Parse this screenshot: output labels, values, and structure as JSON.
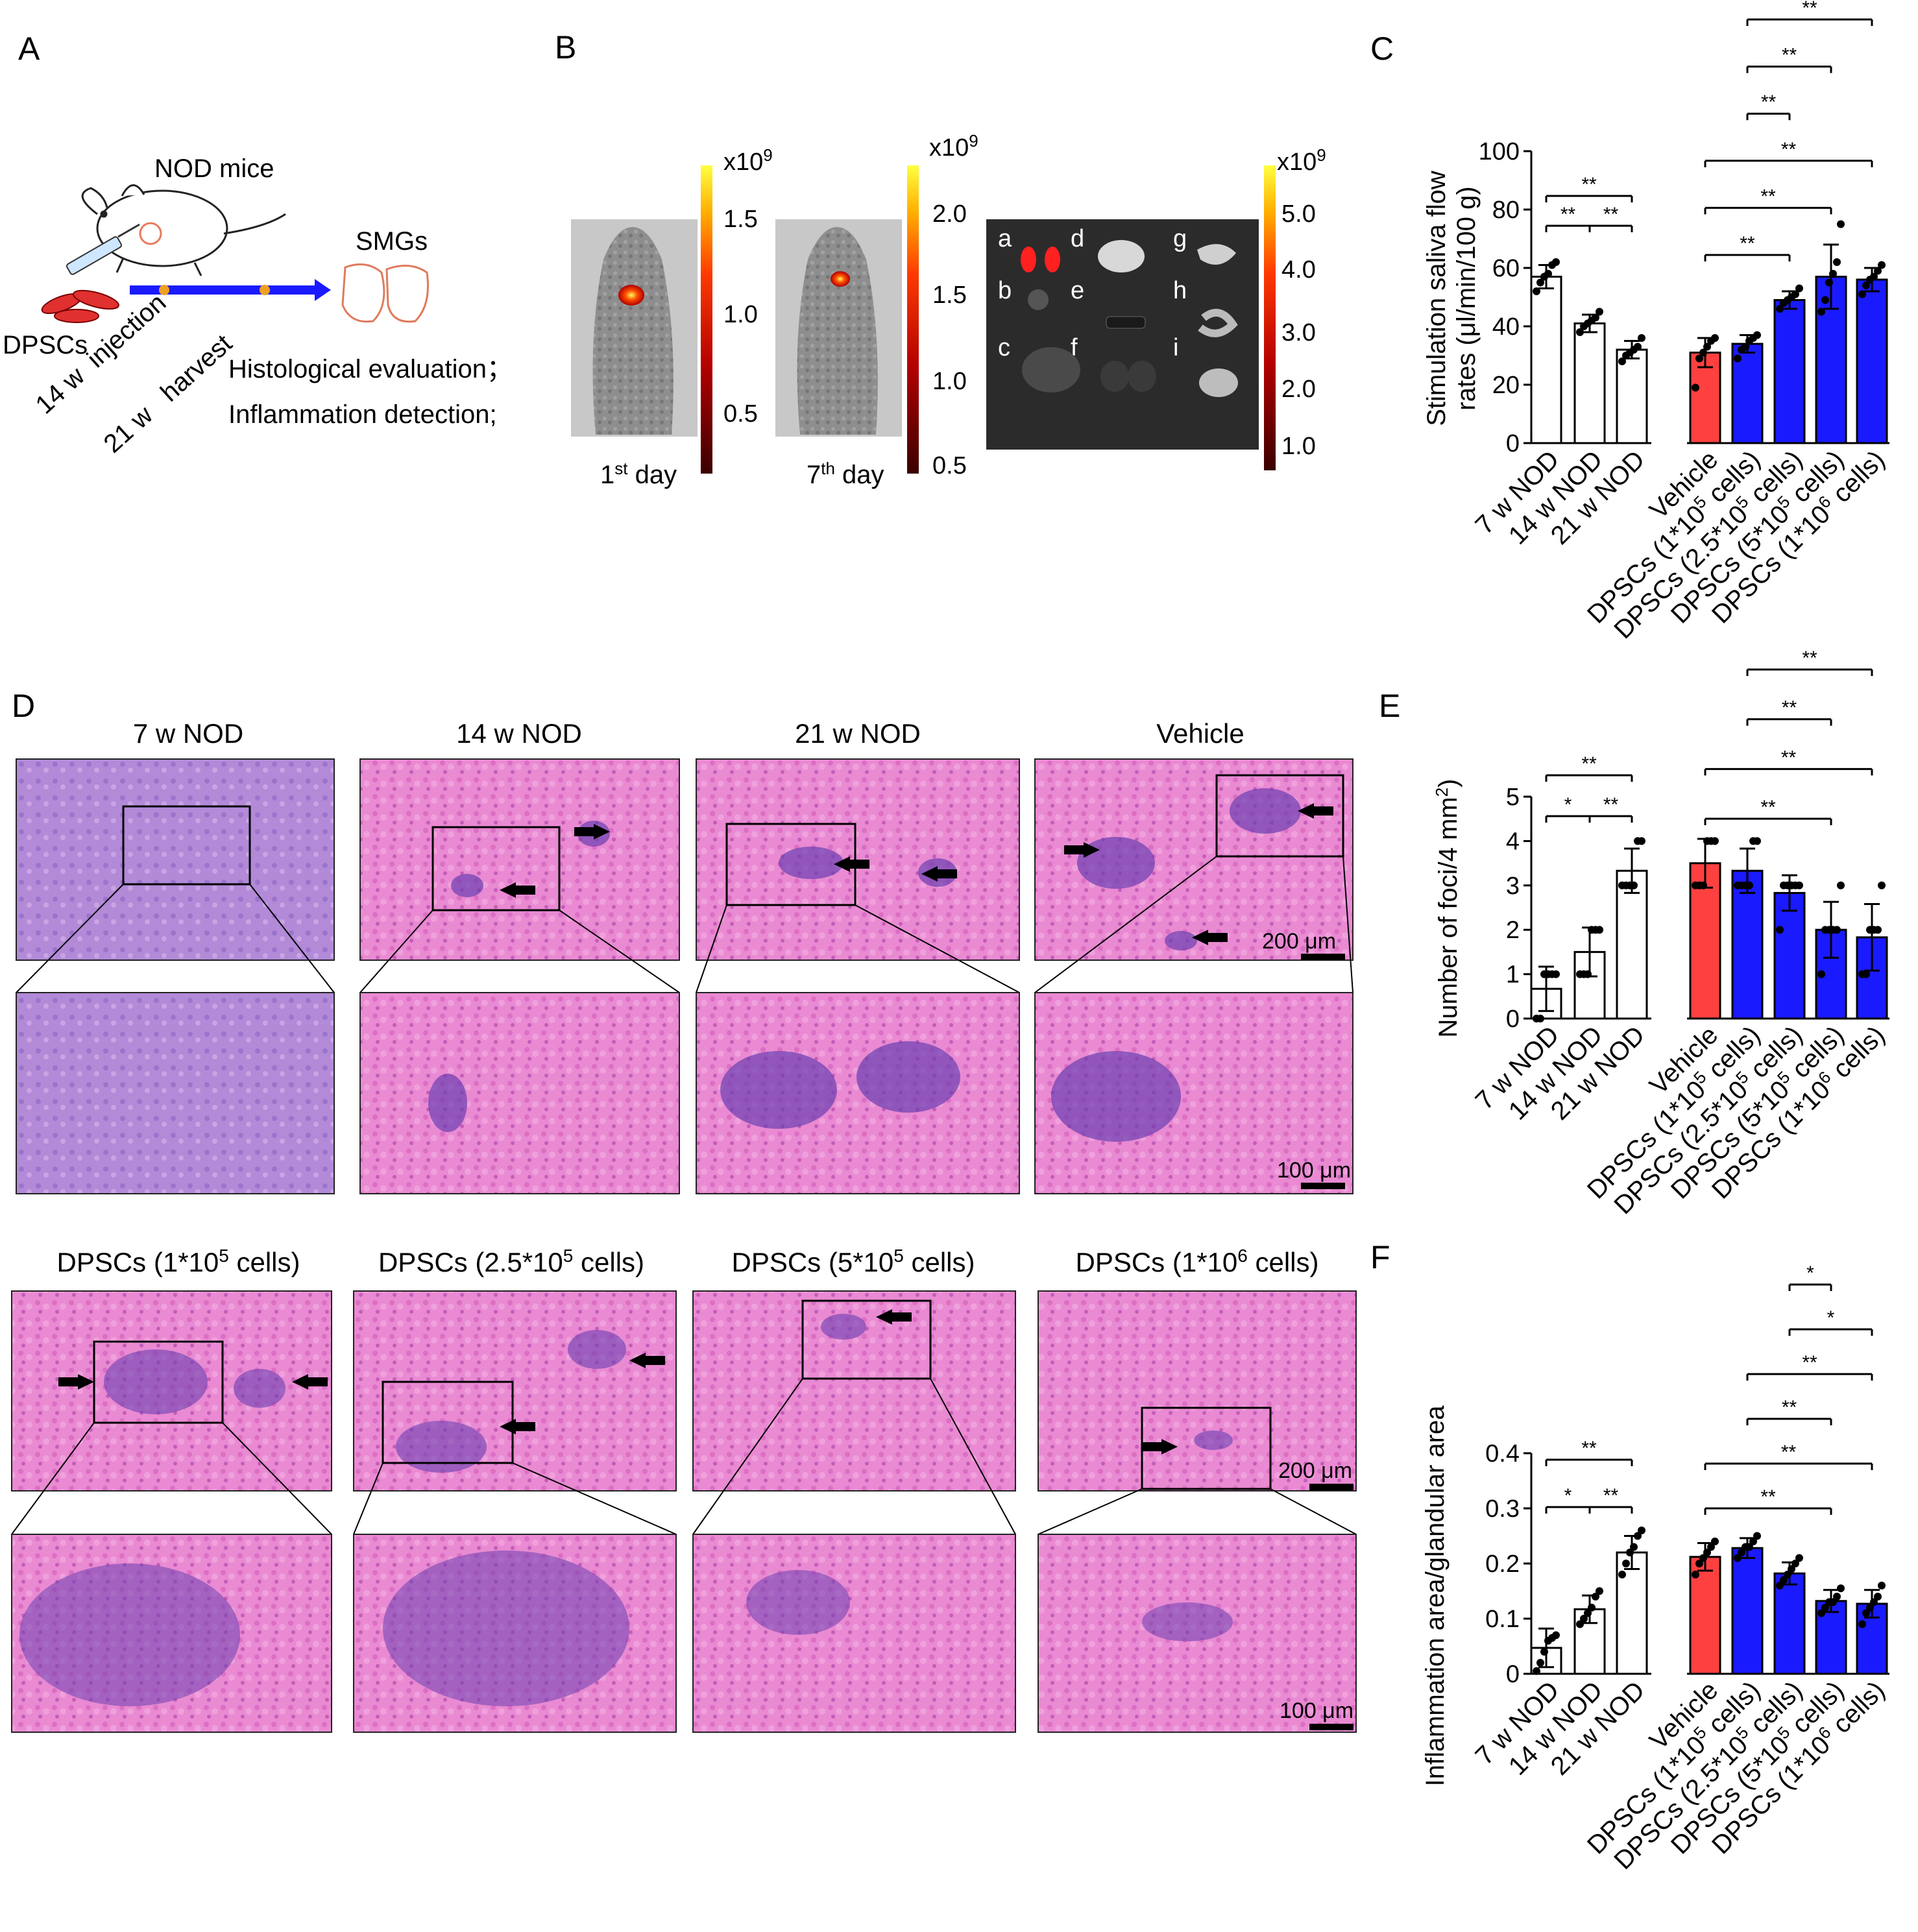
{
  "panels": {
    "A": {
      "letter": "A",
      "mouse_label": "NOD mice",
      "cell_label": "DPSCs",
      "organ_label": "SMGs",
      "timeline": [
        "14 w  injection",
        "21 w   harvest"
      ],
      "outcomes": [
        "Histological evaluation；",
        "Inflammation detection;"
      ]
    },
    "B": {
      "letter": "B",
      "images": [
        {
          "caption": "1st day",
          "caption_base": "1",
          "caption_sup": "st",
          "caption_rest": " day",
          "scale_exp": "x10",
          "scale_exp_sup": "9",
          "scale_ticks": [
            "1.5",
            "1.0",
            "0.5"
          ]
        },
        {
          "caption": "7th day",
          "caption_base": "7",
          "caption_sup": "th",
          "caption_rest": " day",
          "scale_exp": "x10",
          "scale_exp_sup": "9",
          "scale_ticks": [
            "2.0",
            "1.5",
            "1.0",
            "0.5"
          ]
        },
        {
          "caption": "",
          "scale_exp": "x10",
          "scale_exp_sup": "9",
          "scale_ticks": [
            "5.0",
            "4.0",
            "3.0",
            "2.0",
            "1.0"
          ],
          "organ_letters": [
            "a",
            "b",
            "c",
            "d",
            "e",
            "f",
            "g",
            "h",
            "i"
          ]
        }
      ]
    },
    "C": {
      "letter": "C"
    },
    "D": {
      "letter": "D",
      "row1_titles": [
        "7 w NOD",
        "14 w NOD",
        "21 w NOD",
        "Vehicle"
      ],
      "row2_titles": [
        "DPSCs (1*10",
        "DPSCs (2.5*10",
        "DPSCs (5*10",
        "DPSCs (1*10"
      ],
      "row2_sup": [
        "5",
        "5",
        "5",
        "6"
      ],
      "row2_suffix": " cells)",
      "scale_top": "200 μm",
      "scale_bottom": "100 μm"
    },
    "E": {
      "letter": "E"
    },
    "F": {
      "letter": "F"
    }
  },
  "colors": {
    "vehicle": "#ff4040",
    "dpsc": "#1a1aff",
    "control": "#ffffff",
    "he_pink": "#e56bc5",
    "he_purple": "#7a5cc4",
    "timeline": "#1a1aff"
  },
  "chart_data": [
    {
      "id": "C",
      "type": "bar",
      "ylabel": "Stimulation saliva flow rates (μl/min/100 g)",
      "ylabel_lines": [
        "Stimulation saliva flow",
        "rates (μl/min/100 g)"
      ],
      "ylim": [
        0,
        100
      ],
      "yticks": [
        "0",
        "20",
        "40",
        "60",
        "80",
        "100"
      ],
      "categories": [
        "7 w NOD",
        "14 w NOD",
        "21 w NOD",
        "Vehicle",
        "DPSCs (1*10^5 cells)",
        "DPSCs (2.5*10^5 cells)",
        "DPSCs (5*10^5 cells)",
        "DPSCs (1*10^6 cells)"
      ],
      "cat_base": [
        "7 w NOD",
        "14 w NOD",
        "21 w NOD",
        "Vehicle",
        "DPSCs (1*10",
        "DPSCs (2.5*10",
        "DPSCs (5*10",
        "DPSCs (1*10"
      ],
      "cat_sup": [
        "",
        "",
        "",
        "",
        "5",
        "5",
        "5",
        "6"
      ],
      "values": [
        57,
        41,
        32,
        31,
        34,
        49,
        57,
        56
      ],
      "errors": [
        4,
        3,
        3,
        5,
        3,
        3,
        11,
        4
      ],
      "color_groups": [
        "control",
        "control",
        "control",
        "vehicle",
        "dpsc",
        "dpsc",
        "dpsc",
        "dpsc"
      ],
      "points": [
        [
          52,
          55,
          57,
          58,
          61,
          62
        ],
        [
          38,
          40,
          41,
          42,
          43,
          45
        ],
        [
          28,
          30,
          31,
          32,
          33,
          36
        ],
        [
          19,
          29,
          31,
          33,
          35,
          36
        ],
        [
          29,
          32,
          33,
          35,
          36,
          37
        ],
        [
          46,
          48,
          49,
          50,
          51,
          53
        ],
        [
          45,
          49,
          55,
          58,
          62,
          75
        ],
        [
          51,
          54,
          56,
          57,
          59,
          61
        ]
      ],
      "significance": [
        {
          "from": 0,
          "to": 1,
          "label": "**"
        },
        {
          "from": 1,
          "to": 2,
          "label": "**"
        },
        {
          "from": 0,
          "to": 2,
          "label": "**"
        },
        {
          "from": 3,
          "to": 5,
          "label": "**"
        },
        {
          "from": 3,
          "to": 6,
          "label": "**"
        },
        {
          "from": 3,
          "to": 7,
          "label": "**"
        },
        {
          "from": 4,
          "to": 5,
          "label": "**"
        },
        {
          "from": 4,
          "to": 6,
          "label": "**"
        },
        {
          "from": 4,
          "to": 7,
          "label": "**"
        }
      ]
    },
    {
      "id": "E",
      "type": "bar",
      "ylabel": "Number of foci/4 mm2",
      "ylabel_base": "Number of foci/4 mm",
      "ylabel_sup": "2",
      "ylabel_close": ")",
      "ylim": [
        0,
        5
      ],
      "yticks": [
        "0",
        "1",
        "2",
        "3",
        "4",
        "5"
      ],
      "categories": [
        "7 w NOD",
        "14 w NOD",
        "21 w NOD",
        "Vehicle",
        "DPSCs (1*10^5 cells)",
        "DPSCs (2.5*10^5 cells)",
        "DPSCs (5*10^5 cells)",
        "DPSCs (1*10^6 cells)"
      ],
      "cat_base": [
        "7 w NOD",
        "14 w NOD",
        "21 w NOD",
        "Vehicle",
        "DPSCs (1*10",
        "DPSCs (2.5*10",
        "DPSCs (5*10",
        "DPSCs (1*10"
      ],
      "cat_sup": [
        "",
        "",
        "",
        "",
        "5",
        "5",
        "5",
        "6"
      ],
      "values": [
        0.67,
        1.5,
        3.33,
        3.5,
        3.33,
        2.83,
        2.0,
        1.83
      ],
      "errors": [
        0.5,
        0.55,
        0.5,
        0.55,
        0.5,
        0.4,
        0.63,
        0.75
      ],
      "color_groups": [
        "control",
        "control",
        "control",
        "vehicle",
        "dpsc",
        "dpsc",
        "dpsc",
        "dpsc"
      ],
      "points": [
        [
          0,
          0,
          1,
          1,
          1,
          1
        ],
        [
          1,
          1,
          1,
          2,
          2,
          2
        ],
        [
          3,
          3,
          3,
          3,
          4,
          4
        ],
        [
          3,
          3,
          3,
          4,
          4,
          4
        ],
        [
          3,
          3,
          3,
          3,
          4,
          4
        ],
        [
          2,
          3,
          3,
          3,
          3,
          3
        ],
        [
          1,
          2,
          2,
          2,
          2,
          3
        ],
        [
          1,
          1,
          2,
          2,
          2,
          3
        ]
      ],
      "significance": [
        {
          "from": 0,
          "to": 1,
          "label": "*"
        },
        {
          "from": 1,
          "to": 2,
          "label": "**"
        },
        {
          "from": 0,
          "to": 2,
          "label": "**"
        },
        {
          "from": 3,
          "to": 6,
          "label": "**"
        },
        {
          "from": 3,
          "to": 7,
          "label": "**"
        },
        {
          "from": 4,
          "to": 6,
          "label": "**"
        },
        {
          "from": 4,
          "to": 7,
          "label": "**"
        }
      ]
    },
    {
      "id": "F",
      "type": "bar",
      "ylabel": "Inflammation area/glandular area",
      "ylim": [
        0,
        0.4
      ],
      "yticks": [
        "0",
        "0.1",
        "0.2",
        "0.3",
        "0.4"
      ],
      "categories": [
        "7 w NOD",
        "14 w NOD",
        "21 w NOD",
        "Vehicle",
        "DPSCs (1*10^5 cells)",
        "DPSCs (2.5*10^5 cells)",
        "DPSCs (5*10^5 cells)",
        "DPSCs (1*10^6 cells)"
      ],
      "cat_base": [
        "7 w NOD",
        "14 w NOD",
        "21 w NOD",
        "Vehicle",
        "DPSCs (1*10",
        "DPSCs (2.5*10",
        "DPSCs (5*10",
        "DPSCs (1*10"
      ],
      "cat_sup": [
        "",
        "",
        "",
        "",
        "5",
        "5",
        "5",
        "6"
      ],
      "values": [
        0.047,
        0.117,
        0.22,
        0.212,
        0.228,
        0.182,
        0.132,
        0.127
      ],
      "errors": [
        0.035,
        0.025,
        0.03,
        0.025,
        0.018,
        0.02,
        0.02,
        0.025
      ],
      "color_groups": [
        "control",
        "control",
        "control",
        "vehicle",
        "dpsc",
        "dpsc",
        "dpsc",
        "dpsc"
      ],
      "points": [
        [
          0.005,
          0.02,
          0.04,
          0.06,
          0.065,
          0.07
        ],
        [
          0.09,
          0.1,
          0.11,
          0.12,
          0.14,
          0.15
        ],
        [
          0.18,
          0.2,
          0.22,
          0.23,
          0.25,
          0.26
        ],
        [
          0.18,
          0.2,
          0.21,
          0.22,
          0.23,
          0.24
        ],
        [
          0.21,
          0.22,
          0.23,
          0.23,
          0.24,
          0.25
        ],
        [
          0.16,
          0.17,
          0.18,
          0.19,
          0.2,
          0.21
        ],
        [
          0.11,
          0.12,
          0.13,
          0.13,
          0.14,
          0.155
        ],
        [
          0.09,
          0.11,
          0.12,
          0.13,
          0.14,
          0.16
        ]
      ],
      "significance": [
        {
          "from": 0,
          "to": 1,
          "label": "*"
        },
        {
          "from": 1,
          "to": 2,
          "label": "**"
        },
        {
          "from": 0,
          "to": 2,
          "label": "**"
        },
        {
          "from": 3,
          "to": 6,
          "label": "**"
        },
        {
          "from": 3,
          "to": 7,
          "label": "**"
        },
        {
          "from": 4,
          "to": 6,
          "label": "**"
        },
        {
          "from": 4,
          "to": 7,
          "label": "**"
        },
        {
          "from": 5,
          "to": 7,
          "label": "*"
        },
        {
          "from": 5,
          "to": 6,
          "label": "*"
        }
      ]
    }
  ]
}
